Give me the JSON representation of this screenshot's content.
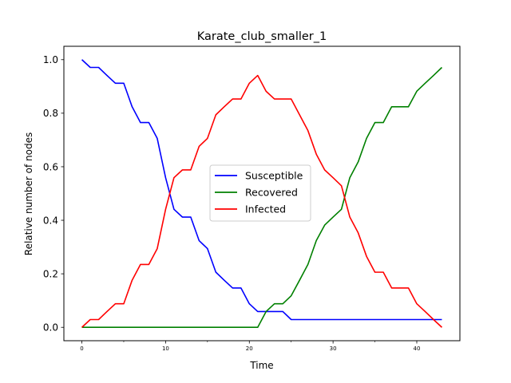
{
  "chart_data": {
    "type": "line",
    "title": "Karate_club_smaller_1",
    "xlabel": "Time",
    "ylabel": "Relative number of nodes",
    "xlim": [
      -2.15,
      45.15
    ],
    "ylim": [
      -0.05,
      1.05
    ],
    "xticks_major": [
      0,
      10,
      20,
      30,
      40
    ],
    "xticks_minor": [
      5,
      15,
      25,
      35
    ],
    "yticks": [
      0.0,
      0.2,
      0.4,
      0.6,
      0.8,
      1.0
    ],
    "ytick_labels": [
      "0.0",
      "0.2",
      "0.4",
      "0.6",
      "0.8",
      "1.0"
    ],
    "grid": false,
    "legend_position": "center-right",
    "x": [
      0,
      1,
      2,
      3,
      4,
      5,
      6,
      7,
      8,
      9,
      10,
      11,
      12,
      13,
      14,
      15,
      16,
      17,
      18,
      19,
      20,
      21,
      22,
      23,
      24,
      25,
      26,
      27,
      28,
      29,
      30,
      31,
      32,
      33,
      34,
      35,
      36,
      37,
      38,
      39,
      40,
      41,
      42,
      43
    ],
    "series": [
      {
        "name": "Susceptible",
        "color": "#0000ff",
        "values": [
          1.0,
          0.971,
          0.971,
          0.941,
          0.912,
          0.912,
          0.824,
          0.765,
          0.765,
          0.706,
          0.559,
          0.441,
          0.412,
          0.412,
          0.324,
          0.294,
          0.206,
          0.176,
          0.147,
          0.147,
          0.088,
          0.059,
          0.059,
          0.059,
          0.059,
          0.029,
          0.029,
          0.029,
          0.029,
          0.029,
          0.029,
          0.029,
          0.029,
          0.029,
          0.029,
          0.029,
          0.029,
          0.029,
          0.029,
          0.029,
          0.029,
          0.029,
          0.029,
          0.029
        ]
      },
      {
        "name": "Recovered",
        "color": "#008000",
        "values": [
          0.0,
          0.0,
          0.0,
          0.0,
          0.0,
          0.0,
          0.0,
          0.0,
          0.0,
          0.0,
          0.0,
          0.0,
          0.0,
          0.0,
          0.0,
          0.0,
          0.0,
          0.0,
          0.0,
          0.0,
          0.0,
          0.0,
          0.059,
          0.088,
          0.088,
          0.118,
          0.176,
          0.235,
          0.324,
          0.382,
          0.412,
          0.441,
          0.559,
          0.618,
          0.706,
          0.765,
          0.765,
          0.824,
          0.824,
          0.824,
          0.882,
          0.912,
          0.941,
          0.971
        ]
      },
      {
        "name": "Infected",
        "color": "#ff0000",
        "values": [
          0.0,
          0.029,
          0.029,
          0.059,
          0.088,
          0.088,
          0.176,
          0.235,
          0.235,
          0.294,
          0.441,
          0.559,
          0.588,
          0.588,
          0.676,
          0.706,
          0.794,
          0.824,
          0.853,
          0.853,
          0.912,
          0.941,
          0.882,
          0.853,
          0.853,
          0.853,
          0.794,
          0.735,
          0.647,
          0.588,
          0.559,
          0.529,
          0.412,
          0.353,
          0.265,
          0.206,
          0.206,
          0.147,
          0.147,
          0.147,
          0.088,
          0.059,
          0.029,
          0.0
        ]
      }
    ]
  }
}
